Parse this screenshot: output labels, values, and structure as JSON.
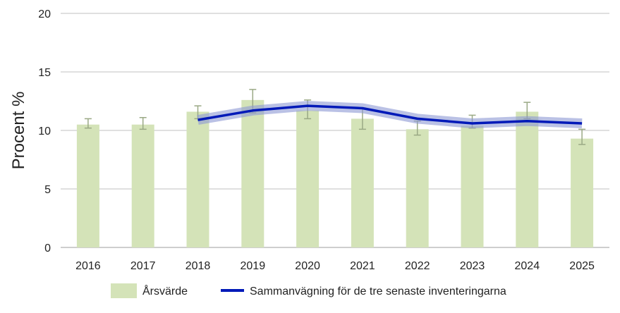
{
  "chart_data": {
    "type": "bar",
    "title": "",
    "xlabel": "",
    "ylabel": "Procent %",
    "ylim": [
      0,
      20
    ],
    "yticks": [
      0,
      5,
      10,
      15,
      20
    ],
    "grid": true,
    "legend_position": "bottom",
    "categories": [
      "2016",
      "2017",
      "2018",
      "2019",
      "2020",
      "2021",
      "2022",
      "2023",
      "2024",
      "2025"
    ],
    "series": [
      {
        "name": "Årsvärde",
        "type": "bar",
        "color": "#d4e3b8",
        "values": [
          10.5,
          10.5,
          11.6,
          12.6,
          11.7,
          11.0,
          10.1,
          10.4,
          11.6,
          9.3
        ],
        "error_low": [
          10.2,
          10.1,
          11.0,
          11.5,
          11.0,
          10.1,
          9.6,
          10.2,
          11.0,
          8.8
        ],
        "error_high": [
          11.0,
          11.1,
          12.1,
          13.5,
          12.6,
          11.9,
          10.8,
          11.3,
          12.4,
          10.1
        ]
      },
      {
        "name": "Sammanvägning för de tre senaste inventeringarna",
        "type": "line",
        "color": "#0019b8",
        "band_color": "#8c97d4",
        "values": [
          null,
          null,
          10.9,
          11.7,
          12.1,
          11.9,
          11.0,
          10.6,
          10.8,
          10.6
        ]
      }
    ]
  }
}
